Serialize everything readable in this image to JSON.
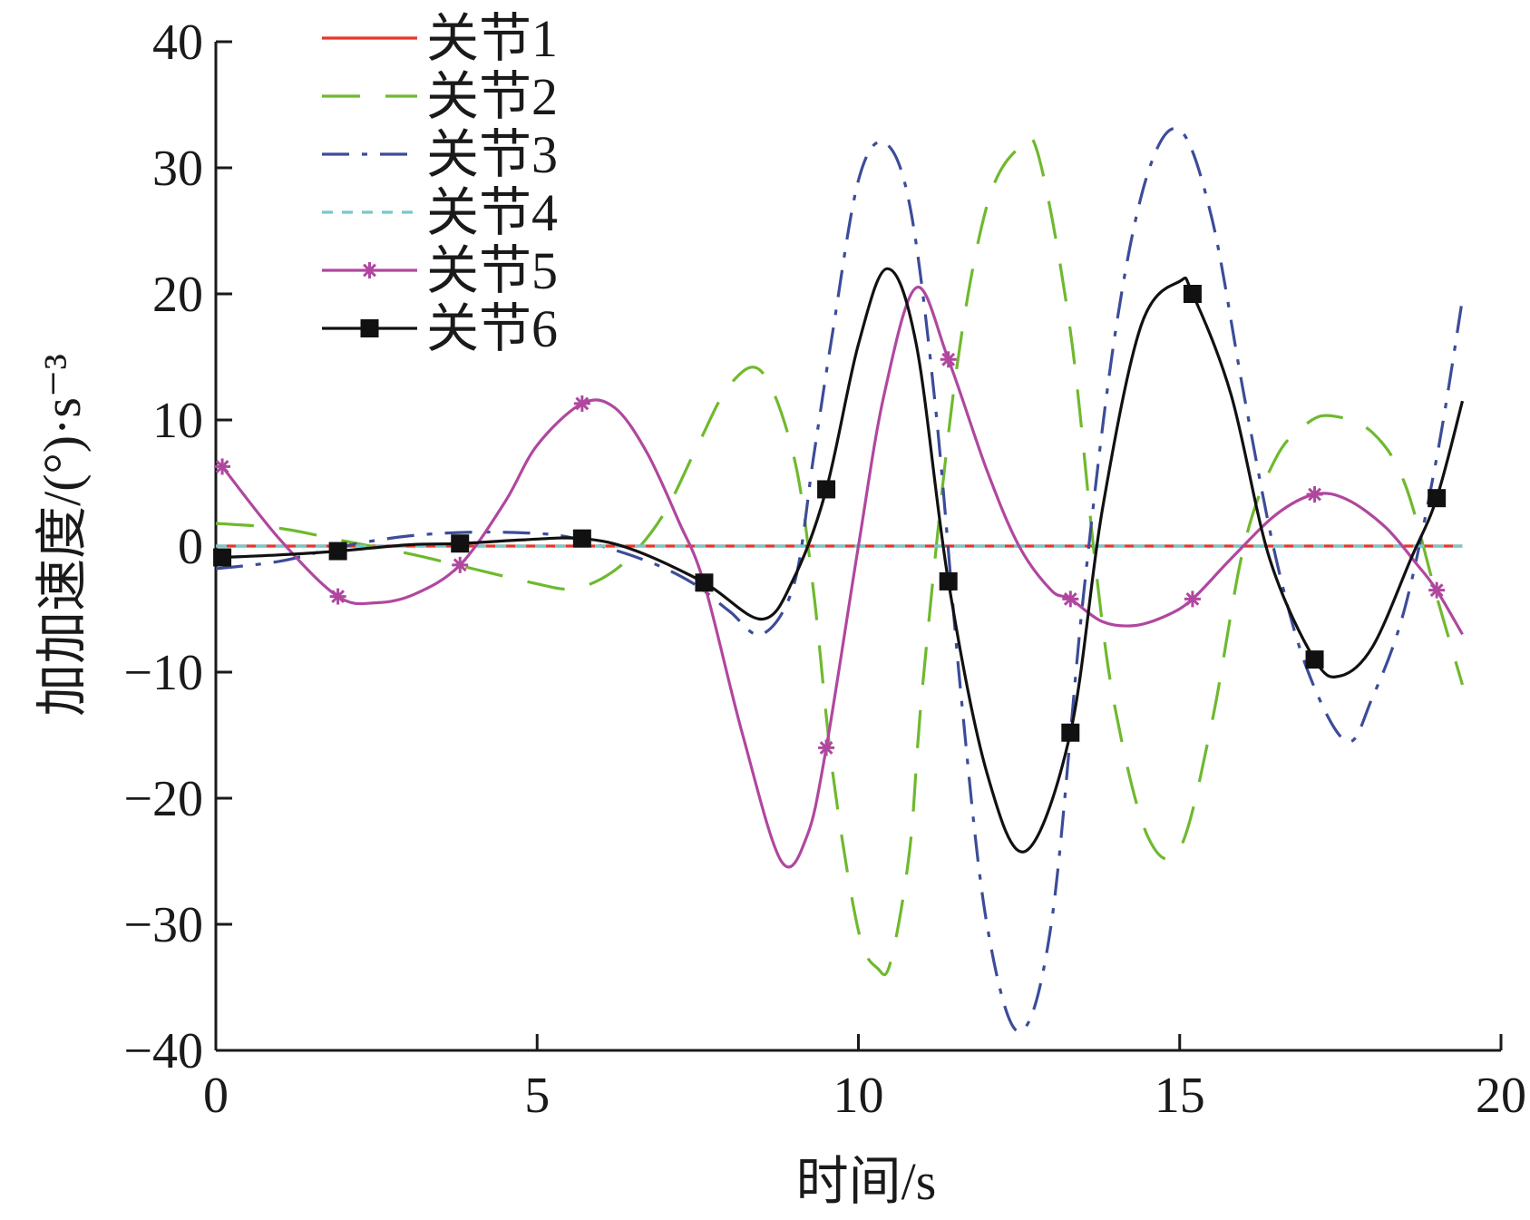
{
  "chart_data": {
    "type": "line",
    "xlabel": "时间/s",
    "ylabel": "加加速度/(°)·s⁻³",
    "xlim": [
      0,
      20
    ],
    "ylim": [
      -40,
      40
    ],
    "xticks": [
      0,
      5,
      10,
      15,
      20
    ],
    "yticks": [
      40,
      30,
      20,
      10,
      0,
      -10,
      -20,
      -30,
      -40
    ],
    "xtick_labels": [
      "0",
      "5",
      "10",
      "15",
      "20"
    ],
    "ytick_labels": [
      "40",
      "30",
      "20",
      "10",
      "0",
      "−10",
      "−20",
      "−30",
      "−40"
    ],
    "grid": false,
    "legend_position": "top-left",
    "series": [
      {
        "name": "关节1",
        "color": "#e8352b",
        "style": "solid",
        "marker": "none",
        "x": [
          0,
          5,
          10,
          15,
          19.4
        ],
        "y": [
          0,
          0,
          0,
          0,
          0
        ]
      },
      {
        "name": "关节2",
        "color": "#6fb92e",
        "style": "longdash",
        "marker": "none",
        "x": [
          0,
          1,
          2,
          3,
          4,
          5,
          5.5,
          6,
          6.5,
          7,
          7.5,
          8,
          8.5,
          9,
          9.3,
          9.6,
          10,
          10.3,
          10.5,
          10.8,
          11,
          11.5,
          12,
          12.5,
          12.8,
          13.3,
          13.7,
          14,
          14.5,
          15,
          15.5,
          16,
          16.5,
          17,
          17.4,
          18,
          18.5,
          19,
          19.4
        ],
        "y": [
          1.8,
          1.4,
          0.4,
          -0.6,
          -1.8,
          -3.0,
          -3.4,
          -2.6,
          -0.6,
          2.8,
          8.0,
          12.8,
          13.8,
          7.0,
          -3.5,
          -18.0,
          -30.5,
          -33.5,
          -33.0,
          -24.0,
          -11.0,
          13.0,
          27.0,
          31.6,
          31.0,
          17.0,
          -2.0,
          -13.0,
          -23.0,
          -24.0,
          -14.0,
          0.0,
          7.0,
          9.8,
          10.3,
          9.0,
          5.0,
          -4.0,
          -11.0
        ]
      },
      {
        "name": "关节3",
        "color": "#3c4c99",
        "style": "dash",
        "marker": "none",
        "x": [
          0,
          1,
          2,
          3,
          4,
          5,
          5.5,
          6,
          6.5,
          7,
          7.5,
          8,
          8.5,
          9,
          9.3,
          9.6,
          10,
          10.4,
          10.8,
          11.2,
          11.6,
          12,
          12.5,
          13,
          13.5,
          14,
          14.5,
          15,
          15.5,
          16,
          16.5,
          17,
          17.6,
          18,
          18.5,
          19,
          19.4
        ],
        "y": [
          -1.8,
          -1.2,
          0.0,
          0.8,
          1.1,
          1.0,
          0.7,
          0.0,
          -0.8,
          -1.8,
          -3.2,
          -5.2,
          -7.0,
          -3.0,
          7.0,
          17.0,
          29.0,
          32.0,
          27.0,
          11.0,
          -12.0,
          -30.0,
          -38.5,
          -30.0,
          -4.0,
          17.0,
          29.5,
          33.0,
          26.0,
          12.0,
          -1.0,
          -10.0,
          -15.5,
          -12.0,
          -5.0,
          7.0,
          19.6
        ]
      },
      {
        "name": "关节4",
        "color": "#78c7c9",
        "style": "shortdash",
        "marker": "none",
        "x": [
          0,
          5,
          10,
          15,
          19.4
        ],
        "y": [
          0,
          0,
          0,
          0,
          0
        ]
      },
      {
        "name": "关节5",
        "color": "#b0479f",
        "style": "solid",
        "marker": "asterisk",
        "x": [
          0.1,
          1,
          1.9,
          2.5,
          3.1,
          3.8,
          4.5,
          5,
          5.7,
          6.2,
          6.7,
          7.2,
          7.6,
          8.2,
          8.8,
          9.2,
          9.5,
          10,
          10.4,
          10.9,
          11.4,
          12,
          12.5,
          13,
          13.3,
          13.8,
          14.3,
          14.8,
          15.2,
          15.8,
          16.5,
          17.1,
          17.6,
          18.2,
          18.7,
          19,
          19.4
        ],
        "y": [
          6.3,
          0.5,
          -4.0,
          -4.5,
          -3.8,
          -1.5,
          3.5,
          8.0,
          11.3,
          11.0,
          7.5,
          2.0,
          -3.0,
          -15.0,
          -25.0,
          -23.0,
          -16.0,
          0.0,
          12.0,
          20.5,
          14.8,
          6.0,
          0.0,
          -3.5,
          -4.2,
          -6.0,
          -6.3,
          -5.5,
          -4.2,
          -1.0,
          2.5,
          4.1,
          3.7,
          1.5,
          -1.5,
          -3.5,
          -7.0
        ]
      },
      {
        "name": "关节6",
        "color": "#111111",
        "style": "solid",
        "marker": "square",
        "x": [
          0.1,
          1,
          1.9,
          3,
          3.8,
          4.8,
          5.7,
          6.5,
          7.6,
          8.5,
          9,
          9.5,
          10,
          10.45,
          10.9,
          11.4,
          12,
          12.6,
          13.3,
          13.8,
          14.4,
          15,
          15.2,
          15.8,
          16.4,
          17.1,
          17.5,
          18,
          18.6,
          19,
          19.4
        ],
        "y": [
          -0.9,
          -0.7,
          -0.4,
          0.1,
          0.2,
          0.5,
          0.6,
          -0.3,
          -2.9,
          -5.8,
          -2.5,
          4.5,
          16.0,
          22.0,
          16.0,
          -2.8,
          -18.0,
          -24.2,
          -14.8,
          3.0,
          17.5,
          21.0,
          20.0,
          12.0,
          -1.0,
          -9.0,
          -10.3,
          -8.0,
          -1.0,
          3.8,
          11.5
        ]
      }
    ],
    "markers": [
      {
        "series": "关节5",
        "x": [
          0.1,
          1.9,
          3.8,
          5.7,
          7.6,
          9.5,
          11.4,
          13.3,
          15.2,
          17.1,
          19.0
        ],
        "y": [
          6.3,
          -4.0,
          -1.5,
          11.3,
          -3.0,
          -16.0,
          14.8,
          -4.2,
          -4.2,
          4.1,
          -3.5
        ]
      },
      {
        "series": "关节6",
        "x": [
          0.1,
          1.9,
          3.8,
          5.7,
          7.6,
          9.5,
          11.4,
          13.3,
          15.2,
          17.1,
          19.0
        ],
        "y": [
          -0.9,
          -0.4,
          0.2,
          0.6,
          -2.9,
          4.5,
          -2.8,
          -14.8,
          20.0,
          -9.0,
          3.8
        ]
      }
    ]
  }
}
